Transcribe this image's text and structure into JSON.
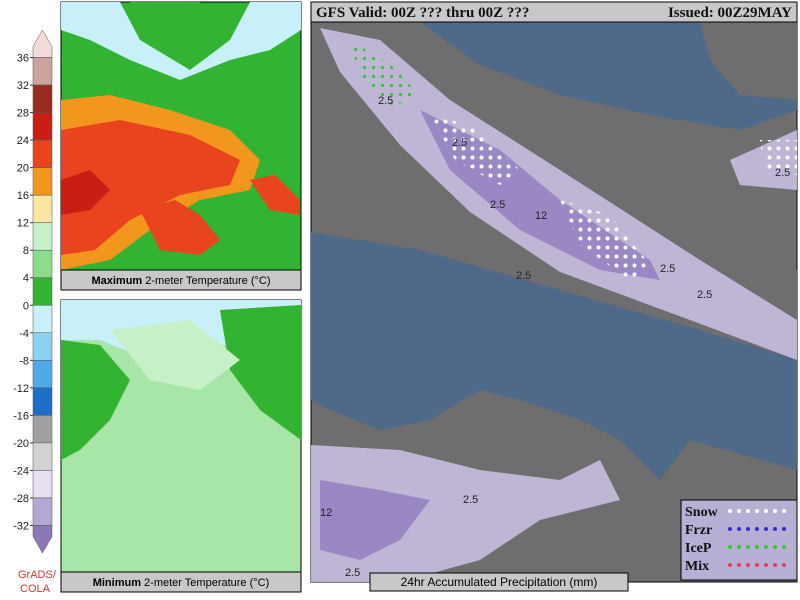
{
  "colorbar": {
    "ticks": [
      36,
      32,
      28,
      24,
      20,
      16,
      12,
      8,
      4,
      0,
      -4,
      -8,
      -12,
      -16,
      -20,
      -24,
      -28,
      -32
    ],
    "range": [
      -36,
      40
    ],
    "colors": [
      "#f2dcd8",
      "#c8a49c",
      "#9a2a20",
      "#c81e14",
      "#e8441e",
      "#f2961e",
      "#fae6a0",
      "#c8f0c8",
      "#8cdc8c",
      "#32b432",
      "#c8f0fa",
      "#8cd2f0",
      "#50aae6",
      "#1e6ec8",
      "#a0a0a0",
      "#d2d2d2",
      "#e6e0f0",
      "#b4a8d2",
      "#8c78b4"
    ]
  },
  "credit": [
    "GrADS/",
    "COLA"
  ],
  "panels": {
    "max_temperature": {
      "caption_bold": "Maximum",
      "caption": "2-meter Temperature (°C)"
    },
    "min_temperature": {
      "caption_bold": "Minimum",
      "caption": "2-meter Temperature (°C)"
    },
    "precipitation": {
      "title": "GFS Valid: 00Z ??? thru 00Z ???",
      "issued": "Issued: 00Z29MAY",
      "caption": "24hr Accumulated Precipitation (mm)",
      "legend": [
        "Snow",
        "Frzr",
        "IceP",
        "Mix"
      ],
      "legend_colors": [
        "#ffffff",
        "#3030c8",
        "#32c832",
        "#e04060"
      ],
      "contour_labels": [
        "2.5",
        "2.5",
        "2.5",
        "12",
        "2.5",
        "2.5",
        "2.5",
        "2.5",
        "2.5",
        "12",
        "2.5"
      ]
    }
  }
}
